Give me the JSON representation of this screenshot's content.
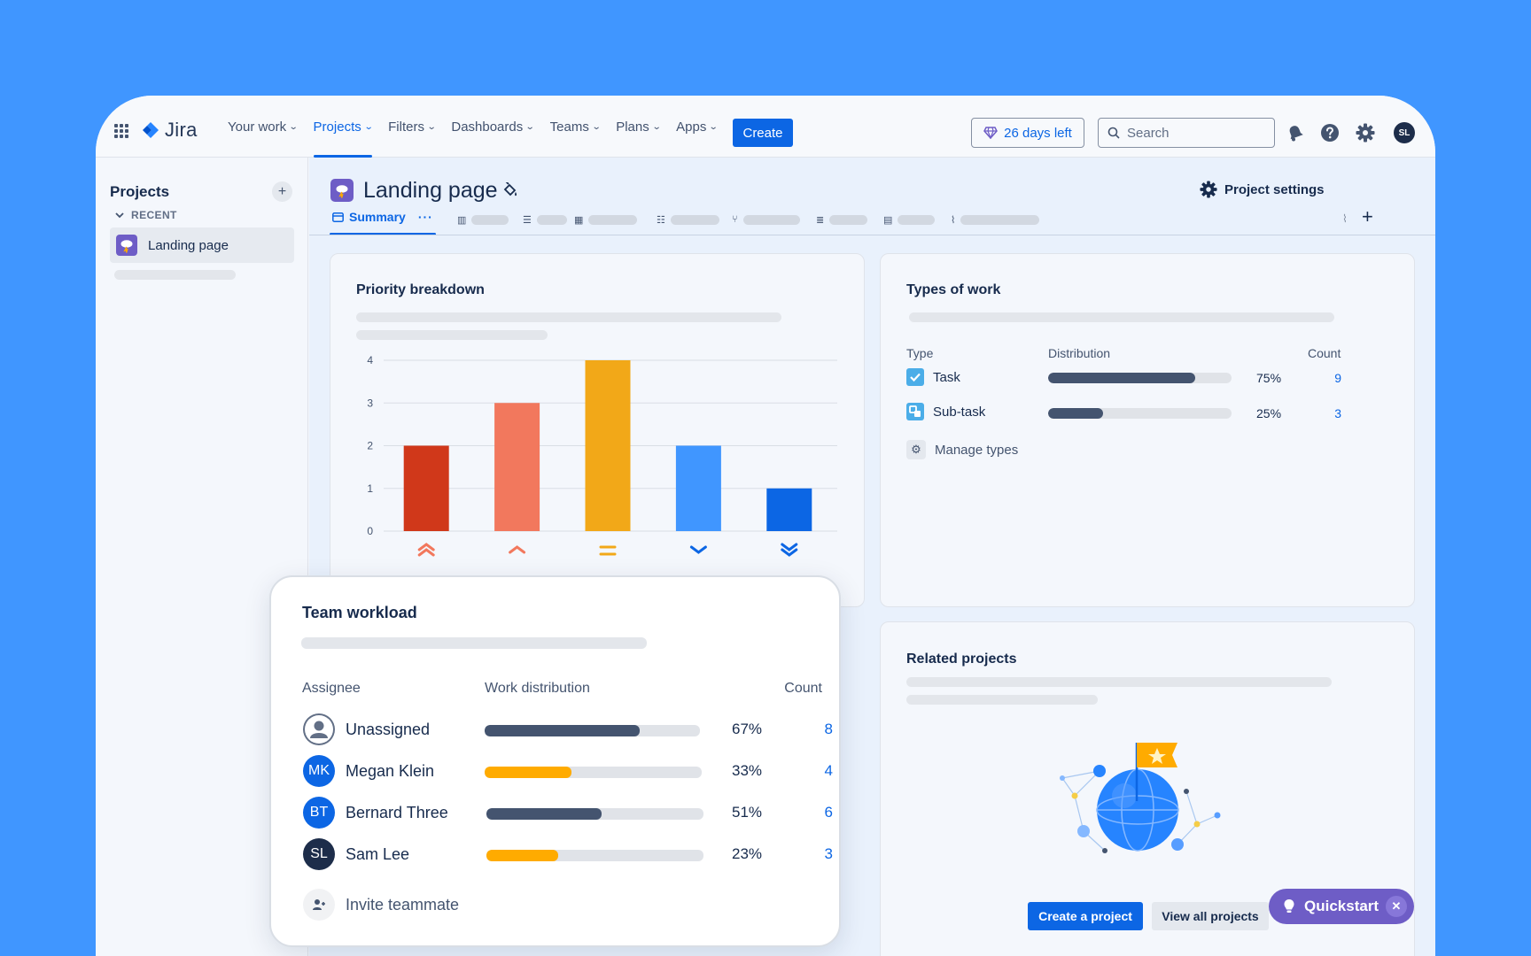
{
  "brand": {
    "name": "Jira"
  },
  "nav": {
    "items": [
      {
        "label": "Your work",
        "active": false
      },
      {
        "label": "Projects",
        "active": true
      },
      {
        "label": "Filters",
        "active": false
      },
      {
        "label": "Dashboards",
        "active": false
      },
      {
        "label": "Teams",
        "active": false
      },
      {
        "label": "Plans",
        "active": false
      },
      {
        "label": "Apps",
        "active": false
      }
    ],
    "create_label": "Create",
    "trial_label": "26 days left",
    "search_placeholder": "Search",
    "avatar_initials": "SL",
    "icons": [
      "app-switcher-icon",
      "notifications-icon",
      "help-icon",
      "settings-icon"
    ]
  },
  "sidebar": {
    "title": "Projects",
    "recent_label": "RECENT",
    "items": [
      {
        "label": "Landing page"
      }
    ]
  },
  "project": {
    "title": "Landing page",
    "settings_label": "Project settings",
    "tabs": [
      {
        "label": "Summary",
        "active": true
      }
    ]
  },
  "priority_card": {
    "title": "Priority breakdown",
    "chart_data": {
      "type": "bar",
      "categories": [
        "Highest",
        "High",
        "Medium",
        "Low",
        "Lowest"
      ],
      "values": [
        2,
        3,
        4,
        2,
        1
      ],
      "colors": [
        "#d0381a",
        "#f2785d",
        "#f2a818",
        "#4096ff",
        "#0c66e4"
      ],
      "yticks": [
        0,
        1,
        2,
        3,
        4
      ],
      "ylim": [
        0,
        4
      ],
      "grid": true,
      "title": "",
      "xlabel": "",
      "ylabel": ""
    }
  },
  "types_card": {
    "title": "Types of work",
    "headers": {
      "type": "Type",
      "distribution": "Distribution",
      "count": "Count"
    },
    "rows": [
      {
        "label": "Task",
        "pct": "75%",
        "count": "9",
        "fraction": 0.8,
        "color": "#44546f",
        "icon": "task-icon"
      },
      {
        "label": "Sub-task",
        "pct": "25%",
        "count": "3",
        "fraction": 0.3,
        "color": "#44546f",
        "icon": "subtask-icon"
      }
    ],
    "manage_label": "Manage types"
  },
  "workload_card": {
    "title": "Team workload",
    "headers": {
      "assignee": "Assignee",
      "distribution": "Work distribution",
      "count": "Count"
    },
    "rows": [
      {
        "name": "Unassigned",
        "initials": "",
        "pct": "67%",
        "count": "8",
        "fraction": 0.72,
        "color": "#44546f",
        "avatar_color": "#626f86"
      },
      {
        "name": "Megan Klein",
        "initials": "MK",
        "pct": "33%",
        "count": "4",
        "fraction": 0.4,
        "color": "#ffab00",
        "avatar_color": "#0c66e4"
      },
      {
        "name": "Bernard Three",
        "initials": "BT",
        "pct": "51%",
        "count": "6",
        "fraction": 0.53,
        "color": "#44546f",
        "avatar_color": "#0c66e4"
      },
      {
        "name": "Sam Lee",
        "initials": "SL",
        "pct": "23%",
        "count": "3",
        "fraction": 0.33,
        "color": "#ffab00",
        "avatar_color": "#1d2d4a"
      }
    ],
    "invite_label": "Invite teammate"
  },
  "related_card": {
    "title": "Related projects",
    "create_label": "Create a project",
    "view_all_label": "View all projects"
  },
  "quickstart": {
    "label": "Quickstart"
  }
}
